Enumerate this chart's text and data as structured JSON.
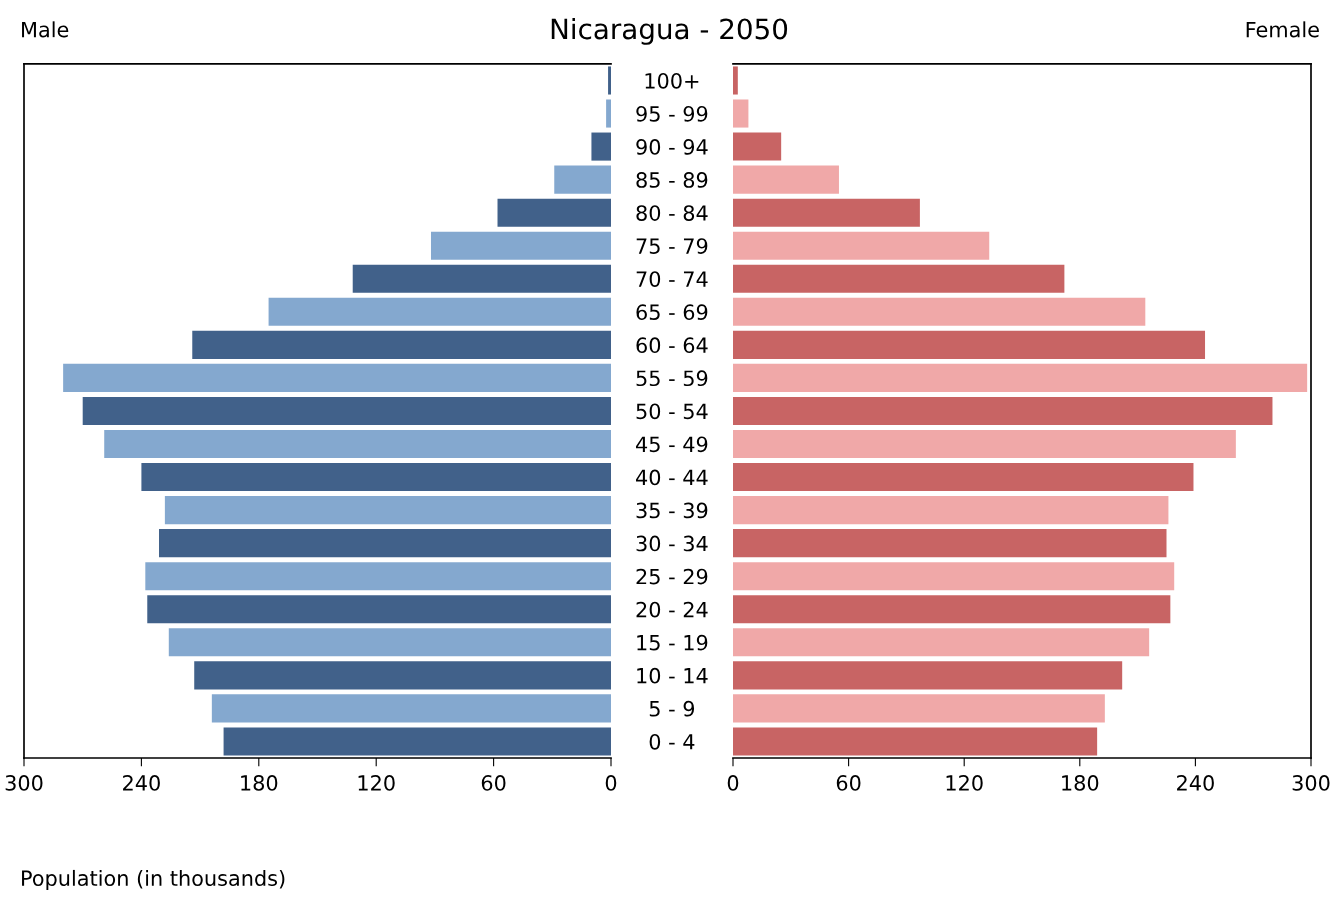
{
  "chart_data": [
    {
      "type": "bar",
      "orientation": "horizontal",
      "title": "Nicaragua - 2050",
      "xlabel": "Population (in thousands)",
      "annotations": [
        "Male"
      ],
      "tick_labels": "x",
      "categories": [
        null,
        null,
        null,
        null,
        null,
        null,
        null,
        null,
        null,
        null,
        null,
        null,
        null,
        null,
        null,
        null,
        null,
        null,
        null,
        null,
        null
      ],
      "values": [
        1.5,
        2.5,
        10,
        29,
        58,
        92,
        132,
        175,
        214,
        280,
        270,
        259,
        240,
        228,
        231,
        238,
        237,
        226,
        213,
        204,
        198
      ],
      "colors": [
        "#41618a",
        "#84a8cf",
        "#41618a",
        "#84a8cf",
        "#41618a",
        "#84a8cf",
        "#41618a",
        "#84a8cf",
        "#41618a",
        "#84a8cf",
        "#41618a",
        "#84a8cf",
        "#41618a",
        "#84a8cf",
        "#41618a",
        "#84a8cf",
        "#41618a",
        "#84a8cf",
        "#41618a",
        "#84a8cf",
        "#41618a"
      ],
      "xlim": [
        300,
        0
      ],
      "xticks": [
        300,
        240,
        180,
        120,
        60,
        0
      ]
    },
    {
      "type": "bar",
      "orientation": "horizontal",
      "annotations": [
        "Female"
      ],
      "categories": [
        "100+",
        "95 - 99",
        "90 - 94",
        "85 - 89",
        "80 - 84",
        "75 - 79",
        "70 - 74",
        "65 - 69",
        "60 - 64",
        "55 - 59",
        "50 - 54",
        "45 - 49",
        "40 - 44",
        "35 - 39",
        "30 - 34",
        "25 - 29",
        "20 - 24",
        "15 - 19",
        "10 - 14",
        "5 - 9",
        "0 - 4"
      ],
      "values": [
        2.5,
        8,
        25,
        55,
        97,
        133,
        172,
        214,
        245,
        298,
        280,
        261,
        239,
        226,
        225,
        229,
        227,
        216,
        202,
        193,
        189
      ],
      "colors": [
        "#c86464",
        "#f0a8a8",
        "#c86464",
        "#f0a8a8",
        "#c86464",
        "#f0a8a8",
        "#c86464",
        "#f0a8a8",
        "#c86464",
        "#f0a8a8",
        "#c86464",
        "#f0a8a8",
        "#c86464",
        "#f0a8a8",
        "#c86464",
        "#f0a8a8",
        "#c86464",
        "#f0a8a8",
        "#c86464",
        "#f0a8a8",
        "#c86464"
      ],
      "xlim": [
        0,
        300
      ],
      "xticks": [
        0,
        60,
        120,
        180,
        240,
        300
      ]
    }
  ]
}
